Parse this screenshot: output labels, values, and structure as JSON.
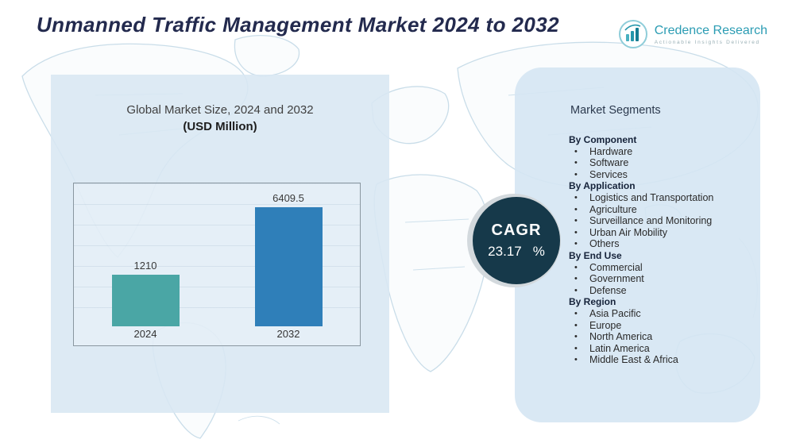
{
  "page": {
    "title": "Unmanned Traffic Management Market 2024 to 2032"
  },
  "logo": {
    "name": "Credence Research",
    "tagline": "Actionable Insights Delivered"
  },
  "chart": {
    "title_line1": "Global Market Size, 2024 and 2032",
    "title_line2": "(USD Million)"
  },
  "chart_data": {
    "type": "bar",
    "title": "Global Market Size, 2024 and 2032 (USD Million)",
    "categories": [
      "2024",
      "2032"
    ],
    "values": [
      1210,
      6409.5
    ],
    "labels": [
      "1210",
      "6409.5"
    ],
    "bar_colors": [
      "#4aa6a5",
      "#2f7fb9"
    ],
    "xlabel": "",
    "ylabel": "",
    "grid": true,
    "legend": false
  },
  "cagr": {
    "label": "CAGR",
    "value": "23.17",
    "unit": "%"
  },
  "segments": {
    "title": "Market Segments",
    "groups": [
      {
        "label": "By Component",
        "items": [
          "Hardware",
          "Software",
          "Services"
        ]
      },
      {
        "label": "By Application",
        "items": [
          "Logistics and Transportation",
          "Agriculture",
          "Surveillance and Monitoring",
          "Urban Air Mobility",
          "Others"
        ]
      },
      {
        "label": "By End Use",
        "items": [
          "Commercial",
          "Government",
          "Defense"
        ]
      },
      {
        "label": "By Region",
        "items": [
          "Asia Pacific",
          "Europe",
          "North America",
          "Latin America",
          "Middle East & Africa"
        ]
      }
    ]
  },
  "colors": {
    "accent_teal": "#4aa6a5",
    "accent_blue": "#2f7fb9",
    "panel_blue": "#d8e7f3",
    "circle_navy": "#16394a",
    "title_navy": "#232a4e",
    "logo_teal": "#2b9cb3"
  }
}
